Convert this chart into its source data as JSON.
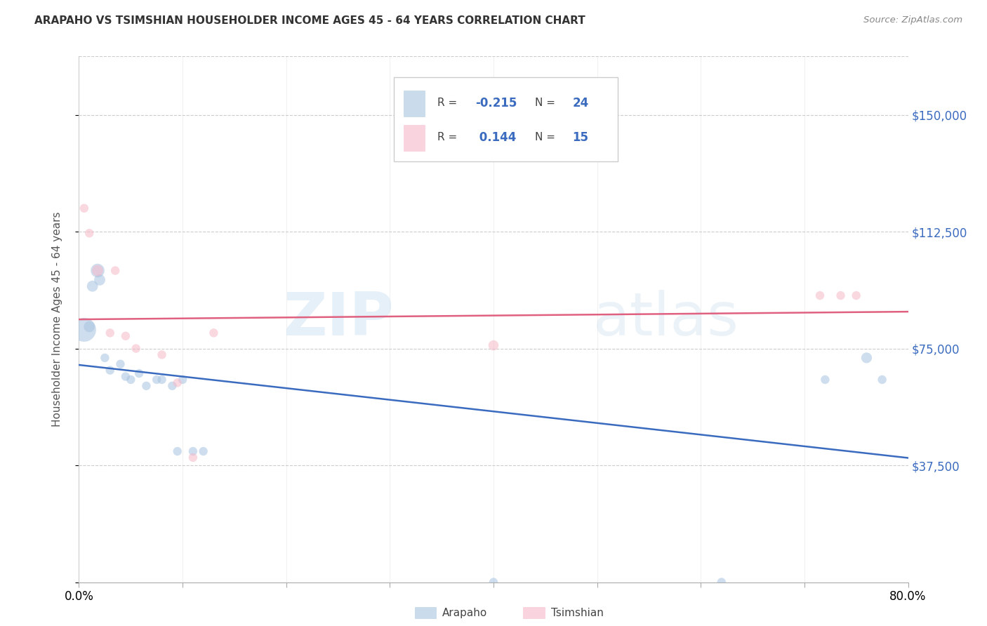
{
  "title": "ARAPAHO VS TSIMSHIAN HOUSEHOLDER INCOME AGES 45 - 64 YEARS CORRELATION CHART",
  "source": "Source: ZipAtlas.com",
  "ylabel": "Householder Income Ages 45 - 64 years",
  "arapaho_R": -0.215,
  "arapaho_N": 24,
  "tsimshian_R": 0.144,
  "tsimshian_N": 15,
  "arapaho_color": "#a8c4e0",
  "tsimshian_color": "#f5b8c8",
  "trend_arapaho_color": "#3b6bbf",
  "trend_tsimshian_color": "#e06080",
  "value_color": "#3b6bbf",
  "background_color": "#FFFFFF",
  "watermark_zip": "ZIP",
  "watermark_atlas": "atlas",
  "xlim": [
    0.0,
    0.8
  ],
  "ylim": [
    0,
    168750
  ],
  "yticks": [
    0,
    37500,
    75000,
    112500,
    150000
  ],
  "ytick_labels": [
    "$37,500",
    "$75,000",
    "$112,500",
    "$150,000"
  ],
  "xticks": [
    0.0,
    0.1,
    0.2,
    0.3,
    0.4,
    0.5,
    0.6,
    0.7,
    0.8
  ],
  "arapaho_x": [
    0.005,
    0.01,
    0.013,
    0.018,
    0.02,
    0.025,
    0.03,
    0.04,
    0.045,
    0.05,
    0.058,
    0.065,
    0.075,
    0.08,
    0.09,
    0.095,
    0.1,
    0.11,
    0.12,
    0.4,
    0.62,
    0.72,
    0.76,
    0.775
  ],
  "arapaho_y": [
    81000,
    82000,
    95000,
    100000,
    97000,
    72000,
    68000,
    70000,
    66000,
    65000,
    67000,
    63000,
    65000,
    65000,
    63000,
    42000,
    65000,
    42000,
    42000,
    0,
    0,
    65000,
    72000,
    65000
  ],
  "arapaho_size": [
    600,
    130,
    130,
    200,
    130,
    80,
    80,
    80,
    80,
    80,
    80,
    80,
    80,
    80,
    80,
    80,
    80,
    80,
    80,
    80,
    80,
    80,
    120,
    80
  ],
  "tsimshian_x": [
    0.005,
    0.01,
    0.018,
    0.03,
    0.035,
    0.045,
    0.055,
    0.08,
    0.095,
    0.11,
    0.13,
    0.4,
    0.715,
    0.735,
    0.75
  ],
  "tsimshian_y": [
    120000,
    112000,
    100000,
    80000,
    100000,
    79000,
    75000,
    73000,
    64000,
    40000,
    80000,
    76000,
    92000,
    92000,
    92000
  ],
  "tsimshian_size": [
    80,
    80,
    130,
    80,
    80,
    80,
    80,
    80,
    80,
    80,
    80,
    110,
    80,
    80,
    80
  ]
}
